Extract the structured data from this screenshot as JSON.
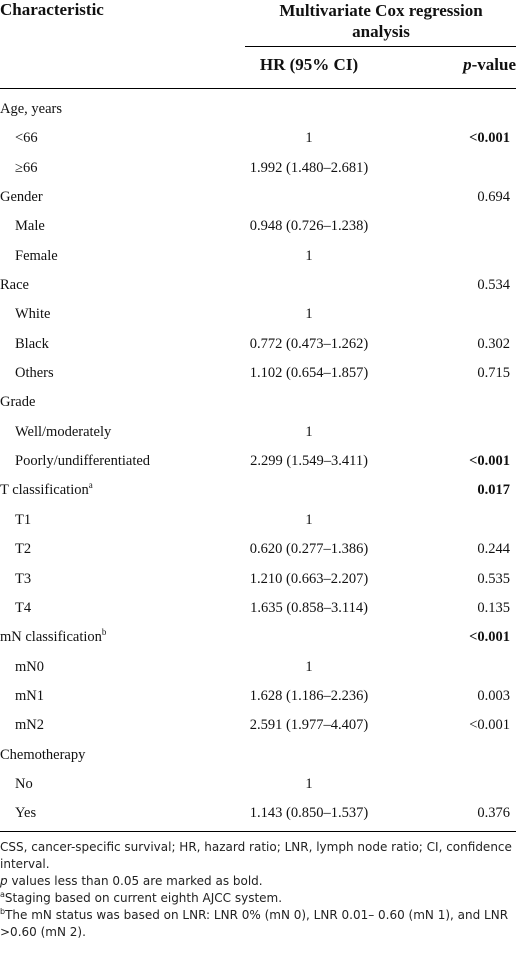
{
  "header": {
    "characteristic": "Characteristic",
    "multivariate_line1": "Multivariate Cox regression",
    "multivariate_line2": "analysis",
    "hr_col": "HR (95% CI)",
    "p_col_italic": "p",
    "p_col_rest": "-value"
  },
  "rows": [
    {
      "label": "Age, years",
      "hr": "",
      "p": ""
    },
    {
      "label": "<66",
      "hr": "1",
      "p": "<0.001"
    },
    {
      "label": "≥66",
      "hr": "1.992 (1.480–2.681)",
      "p": ""
    },
    {
      "label": "Gender",
      "hr": "",
      "p": "0.694"
    },
    {
      "label": "Male",
      "hr": "0.948 (0.726–1.238)",
      "p": ""
    },
    {
      "label": "Female",
      "hr": "1",
      "p": ""
    },
    {
      "label": "Race",
      "hr": "",
      "p": "0.534"
    },
    {
      "label": "White",
      "hr": "1",
      "p": ""
    },
    {
      "label": "Black",
      "hr": "0.772 (0.473–1.262)",
      "p": "0.302"
    },
    {
      "label": "Others",
      "hr": "1.102 (0.654–1.857)",
      "p": "0.715"
    },
    {
      "label": "Grade",
      "hr": "",
      "p": ""
    },
    {
      "label": "Well/moderately",
      "hr": "1",
      "p": ""
    },
    {
      "label": "Poorly/undifferentiated",
      "hr": "2.299 (1.549–3.411)",
      "p": "<0.001"
    },
    {
      "label": "T classification",
      "sup": "a",
      "hr": "",
      "p": "0.017"
    },
    {
      "label": "T1",
      "hr": "1",
      "p": ""
    },
    {
      "label": "T2",
      "hr": "0.620 (0.277–1.386)",
      "p": "0.244"
    },
    {
      "label": "T3",
      "hr": "1.210 (0.663–2.207)",
      "p": "0.535"
    },
    {
      "label": "T4",
      "hr": "1.635 (0.858–3.114)",
      "p": "0.135"
    },
    {
      "label": "mN classification",
      "sup": "b",
      "hr": "",
      "p": "<0.001"
    },
    {
      "label": "mN0",
      "hr": "1",
      "p": ""
    },
    {
      "label": "mN1",
      "hr": "1.628 (1.186–2.236)",
      "p": "0.003"
    },
    {
      "label": "mN2",
      "hr": "2.591 (1.977–4.407)",
      "p": "<0.001"
    },
    {
      "label": "Chemotherapy",
      "hr": "",
      "p": ""
    },
    {
      "label": "No",
      "hr": "1",
      "p": ""
    },
    {
      "label": "Yes",
      "hr": "1.143 (0.850–1.537)",
      "p": "0.376"
    }
  ],
  "footnotes": {
    "abbrev": "CSS, cancer-specific survival; HR, hazard ratio; LNR, lymph node ratio; CI, confidence interval.",
    "bold_note_italic": "p",
    "bold_note_rest": " values less than 0.05 are marked as bold.",
    "note_a_mark": "a",
    "note_a": "Staging based on current eighth AJCC system.",
    "note_b_mark": "b",
    "note_b": "The mN status was based on LNR: LNR 0% (mN 0), LNR 0.01– 0.60 (mN 1), and LNR >0.60 (mN 2)."
  }
}
